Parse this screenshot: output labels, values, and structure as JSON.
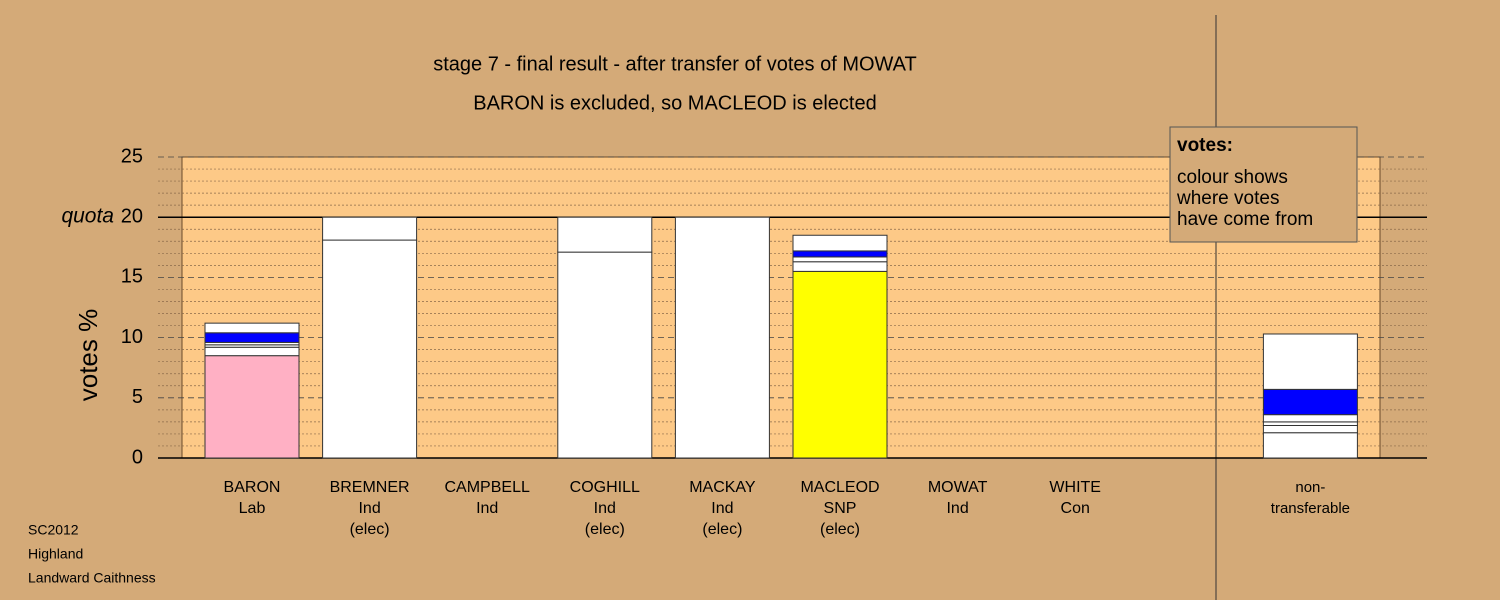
{
  "chart_data": {
    "type": "stacked-bar",
    "title": "stage 7 - final result - after transfer of votes of MOWAT",
    "subtitle": "BARON is excluded, so MACLEOD is elected",
    "y_label": "votes %",
    "categories": [
      [
        "BARON",
        "Lab"
      ],
      [
        "BREMNER",
        "Ind",
        "(elec)"
      ],
      [
        "CAMPBELL",
        "Ind"
      ],
      [
        "COGHILL",
        "Ind",
        "(elec)"
      ],
      [
        "MACKAY",
        "Ind",
        "(elec)"
      ],
      [
        "MACLEOD",
        "SNP",
        "(elec)"
      ],
      [
        "MOWAT",
        "Ind"
      ],
      [
        "WHITE",
        "Con"
      ],
      null,
      [
        "non-",
        "transferable"
      ]
    ],
    "stacks": [
      [
        8.5,
        0.7,
        0.2,
        0.2,
        0.8,
        0.8
      ],
      [
        18.1,
        1.9
      ],
      [],
      [
        17.1,
        2.9
      ],
      [
        20
      ],
      [
        15.5,
        0.8,
        0.4,
        0.5,
        1.3
      ],
      [],
      [],
      [],
      [
        2.1,
        0.6,
        0.3,
        0.6,
        2.1,
        4.6
      ]
    ],
    "stack_colors": [
      [
        "#ffb0c4",
        "#ffffff",
        "#ffffff",
        "#ffffff",
        "#0000ff",
        "#ffffff"
      ],
      [
        "#ffffff",
        "#ffffff"
      ],
      [],
      [
        "#ffffff",
        "#ffffff"
      ],
      [
        "#ffffff"
      ],
      [
        "#ffff00",
        "#ffffff",
        "#ffffff",
        "#0000ff",
        "#ffffff"
      ],
      [],
      [],
      [],
      [
        "#ffffff",
        "#ffffff",
        "#ffffff",
        "#ffffff",
        "#0000ff",
        "#ffffff"
      ]
    ],
    "ylim": [
      0,
      25
    ],
    "yticks": [
      0,
      5,
      10,
      15,
      20,
      25
    ],
    "minor_yticks": [
      1,
      2,
      3,
      4,
      6,
      7,
      8,
      9,
      11,
      12,
      13,
      14,
      16,
      17,
      18,
      19,
      21,
      22,
      23,
      24
    ],
    "quota": 20,
    "quota_label": "quota",
    "grid": true,
    "legend": {
      "title": "votes:",
      "lines": [
        "colour shows",
        "where votes",
        "have come from"
      ]
    }
  },
  "footer": [
    "SC2012",
    "Highland",
    "Landward Caithness"
  ]
}
